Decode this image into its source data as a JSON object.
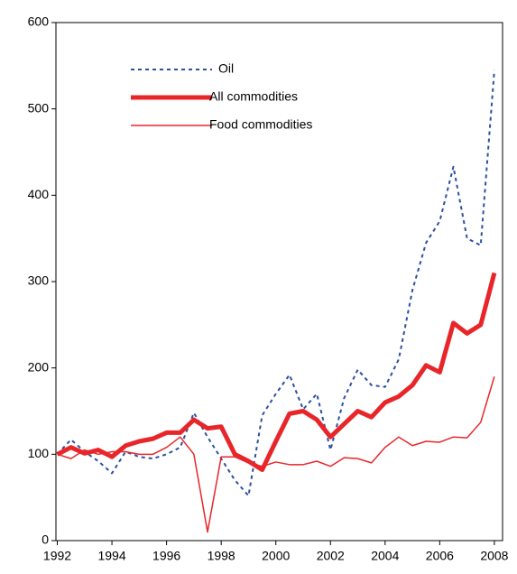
{
  "chart_data": {
    "type": "line",
    "x": [
      1992,
      1992.5,
      1993,
      1993.5,
      1994,
      1994.5,
      1995,
      1995.5,
      1996,
      1996.5,
      1997,
      1997.5,
      1998,
      1998.5,
      1999,
      1999.5,
      2000,
      2000.5,
      2001,
      2001.5,
      2002,
      2002.5,
      2003,
      2003.5,
      2004,
      2004.5,
      2005,
      2005.5,
      2006,
      2006.5,
      2007,
      2007.5,
      2008
    ],
    "series": [
      {
        "name": "Oil",
        "color": "#2e4f9e",
        "style": "dotted",
        "width": 2,
        "values": [
          100,
          117,
          103,
          92,
          78,
          103,
          97,
          95,
          100,
          108,
          148,
          120,
          95,
          70,
          52,
          145,
          170,
          192,
          152,
          170,
          105,
          165,
          198,
          180,
          178,
          210,
          290,
          345,
          370,
          433,
          350,
          342,
          545
        ]
      },
      {
        "name": "All commodities",
        "color": "#e8262a",
        "style": "solid",
        "width": 5,
        "values": [
          100,
          108,
          101,
          105,
          97,
          110,
          115,
          118,
          125,
          125,
          140,
          130,
          132,
          100,
          92,
          82,
          115,
          147,
          150,
          140,
          120,
          135,
          150,
          143,
          160,
          167,
          180,
          203,
          195,
          252,
          240,
          250,
          310
        ]
      },
      {
        "name": "Food commodities",
        "color": "#e8262a",
        "style": "solid",
        "width": 1.5,
        "values": [
          100,
          95,
          105,
          100,
          103,
          103,
          100,
          100,
          108,
          120,
          100,
          10,
          97,
          97,
          90,
          86,
          91,
          88,
          88,
          92,
          86,
          96,
          95,
          90,
          108,
          120,
          110,
          115,
          114,
          120,
          119,
          137,
          190
        ]
      }
    ],
    "xlim": [
      1991.95,
      2008.3
    ],
    "xticks": [
      1992,
      1994,
      1996,
      1998,
      2000,
      2002,
      2004,
      2006,
      2008
    ],
    "ylim": [
      0,
      600
    ],
    "yticks": [
      0,
      100,
      200,
      300,
      400,
      500,
      600
    ],
    "grid": false
  }
}
